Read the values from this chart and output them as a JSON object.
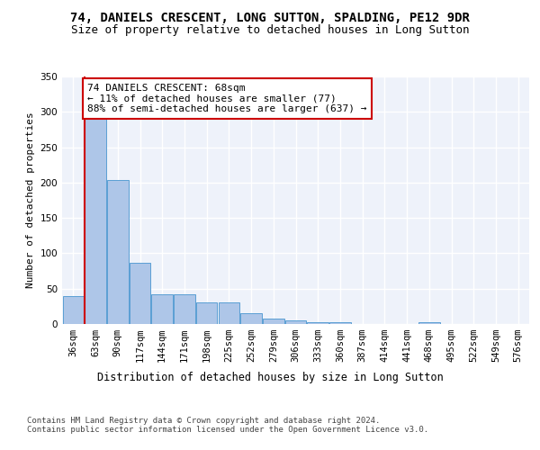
{
  "title1": "74, DANIELS CRESCENT, LONG SUTTON, SPALDING, PE12 9DR",
  "title2": "Size of property relative to detached houses in Long Sutton",
  "xlabel": "Distribution of detached houses by size in Long Sutton",
  "ylabel": "Number of detached properties",
  "categories": [
    "36sqm",
    "63sqm",
    "90sqm",
    "117sqm",
    "144sqm",
    "171sqm",
    "198sqm",
    "225sqm",
    "252sqm",
    "279sqm",
    "306sqm",
    "333sqm",
    "360sqm",
    "387sqm",
    "414sqm",
    "441sqm",
    "468sqm",
    "495sqm",
    "522sqm",
    "549sqm",
    "576sqm"
  ],
  "values": [
    40,
    290,
    204,
    86,
    42,
    42,
    30,
    30,
    15,
    8,
    5,
    3,
    2,
    0,
    0,
    0,
    2,
    0,
    0,
    0,
    0
  ],
  "bar_color": "#aec6e8",
  "bar_edge_color": "#5a9fd4",
  "subject_line_color": "#cc0000",
  "annotation_text": "74 DANIELS CRESCENT: 68sqm\n← 11% of detached houses are smaller (77)\n88% of semi-detached houses are larger (637) →",
  "annotation_box_color": "#ffffff",
  "annotation_border_color": "#cc0000",
  "ylim": [
    0,
    350
  ],
  "yticks": [
    0,
    50,
    100,
    150,
    200,
    250,
    300,
    350
  ],
  "background_color": "#eef2fa",
  "grid_color": "#ffffff",
  "footer_text": "Contains HM Land Registry data © Crown copyright and database right 2024.\nContains public sector information licensed under the Open Government Licence v3.0.",
  "title1_fontsize": 10,
  "title2_fontsize": 9,
  "xlabel_fontsize": 8.5,
  "ylabel_fontsize": 8,
  "tick_fontsize": 7.5,
  "annotation_fontsize": 8,
  "footer_fontsize": 6.5
}
